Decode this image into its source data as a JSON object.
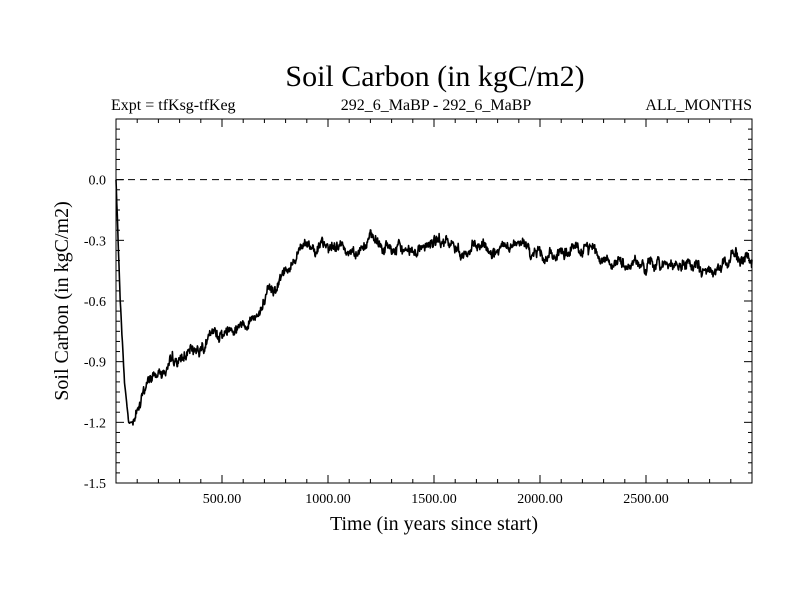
{
  "chart_data": {
    "type": "line",
    "title": "Soil Carbon (in kgC/m2)",
    "subtitle_left": "Expt = tfKsg-tfKeg",
    "subtitle_center": "292_6_MaBP - 292_6_MaBP",
    "subtitle_right": "ALL_MONTHS",
    "xlabel": "Time (in years since start)",
    "ylabel": "Soil Carbon (in kgC/m2)",
    "xlim": [
      0,
      3000
    ],
    "ylim": [
      -1.5,
      0.3
    ],
    "x_ticks": [
      500,
      1000,
      1500,
      2000,
      2500
    ],
    "x_tick_labels": [
      "500.00",
      "1000.00",
      "1500.00",
      "2000.00",
      "2500.00"
    ],
    "y_ticks": [
      0.0,
      -0.3,
      -0.6,
      -0.9,
      -1.2,
      -1.5
    ],
    "y_tick_labels": [
      "0.0",
      "-0.3",
      "-0.6",
      "-0.9",
      "-1.2",
      "-1.5"
    ],
    "reference_line": {
      "y": 0.0,
      "style": "dashed"
    },
    "series": [
      {
        "name": "Soil Carbon",
        "color": "#000000",
        "x": [
          0,
          20,
          40,
          60,
          80,
          100,
          150,
          200,
          250,
          300,
          350,
          400,
          450,
          500,
          550,
          600,
          650,
          700,
          750,
          800,
          850,
          900,
          950,
          1000,
          1050,
          1100,
          1150,
          1200,
          1250,
          1300,
          1350,
          1400,
          1450,
          1500,
          1550,
          1600,
          1650,
          1700,
          1750,
          1800,
          1850,
          1900,
          1950,
          2000,
          2050,
          2100,
          2150,
          2200,
          2250,
          2300,
          2350,
          2400,
          2450,
          2500,
          2550,
          2600,
          2650,
          2700,
          2750,
          2800,
          2850,
          2900,
          2950,
          3000
        ],
        "values": [
          0.0,
          -0.6,
          -1.0,
          -1.2,
          -1.2,
          -1.15,
          -1.0,
          -0.95,
          -0.93,
          -0.9,
          -0.86,
          -0.82,
          -0.78,
          -0.76,
          -0.72,
          -0.7,
          -0.67,
          -0.62,
          -0.53,
          -0.44,
          -0.37,
          -0.3,
          -0.33,
          -0.35,
          -0.32,
          -0.35,
          -0.33,
          -0.3,
          -0.33,
          -0.35,
          -0.36,
          -0.34,
          -0.32,
          -0.31,
          -0.32,
          -0.34,
          -0.36,
          -0.35,
          -0.34,
          -0.37,
          -0.35,
          -0.33,
          -0.35,
          -0.36,
          -0.38,
          -0.37,
          -0.35,
          -0.36,
          -0.33,
          -0.38,
          -0.4,
          -0.42,
          -0.4,
          -0.44,
          -0.42,
          -0.4,
          -0.43,
          -0.42,
          -0.44,
          -0.46,
          -0.45,
          -0.37,
          -0.38,
          -0.42
        ]
      }
    ]
  }
}
